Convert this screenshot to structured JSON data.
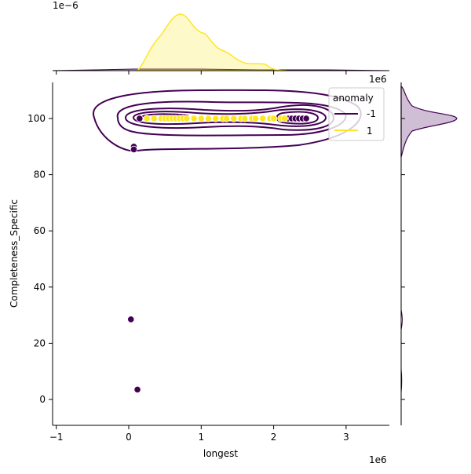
{
  "chart_data": {
    "type": "scatter",
    "subtype": "jointplot with kde contours and marginal kde",
    "xlabel": "longest",
    "ylabel": "Completeness_Specific",
    "x_offset_label": "1e6",
    "top_marginal_offset_label": "1e−6",
    "xlim": [
      -1.05,
      3.6
    ],
    "ylim": [
      -9,
      113
    ],
    "x_ticks": [
      -1,
      0,
      1,
      2,
      3
    ],
    "y_ticks": [
      0,
      20,
      40,
      60,
      80,
      100
    ],
    "legend": {
      "title": "anomaly",
      "entries": [
        {
          "label": "-1",
          "color": "#440154"
        },
        {
          "label": "1",
          "color": "#fde725"
        }
      ],
      "placement": "top-right"
    },
    "series": [
      {
        "name": "-1",
        "color": "#440154",
        "points": [
          [
            0.07,
            90
          ],
          [
            0.07,
            89
          ],
          [
            0.03,
            28.5
          ],
          [
            0.12,
            3.5
          ],
          [
            0.15,
            100
          ],
          [
            2.2,
            100
          ],
          [
            2.25,
            100
          ],
          [
            2.3,
            100
          ],
          [
            2.35,
            100
          ],
          [
            2.4,
            100
          ],
          [
            2.45,
            100
          ]
        ]
      },
      {
        "name": "1",
        "color": "#fde725",
        "points": [
          [
            0.25,
            100
          ],
          [
            0.35,
            100
          ],
          [
            0.45,
            100
          ],
          [
            0.5,
            100
          ],
          [
            0.55,
            100
          ],
          [
            0.6,
            100
          ],
          [
            0.65,
            100
          ],
          [
            0.7,
            100
          ],
          [
            0.75,
            100
          ],
          [
            0.8,
            100
          ],
          [
            0.9,
            100
          ],
          [
            1.0,
            100
          ],
          [
            1.1,
            100
          ],
          [
            1.2,
            100
          ],
          [
            1.3,
            100
          ],
          [
            1.35,
            100
          ],
          [
            1.45,
            100
          ],
          [
            1.55,
            100
          ],
          [
            1.6,
            100
          ],
          [
            1.7,
            100
          ],
          [
            1.75,
            100
          ],
          [
            1.85,
            100
          ],
          [
            1.95,
            100
          ],
          [
            2.0,
            100
          ],
          [
            2.1,
            100
          ],
          [
            2.15,
            100
          ]
        ]
      }
    ],
    "grid": false
  }
}
